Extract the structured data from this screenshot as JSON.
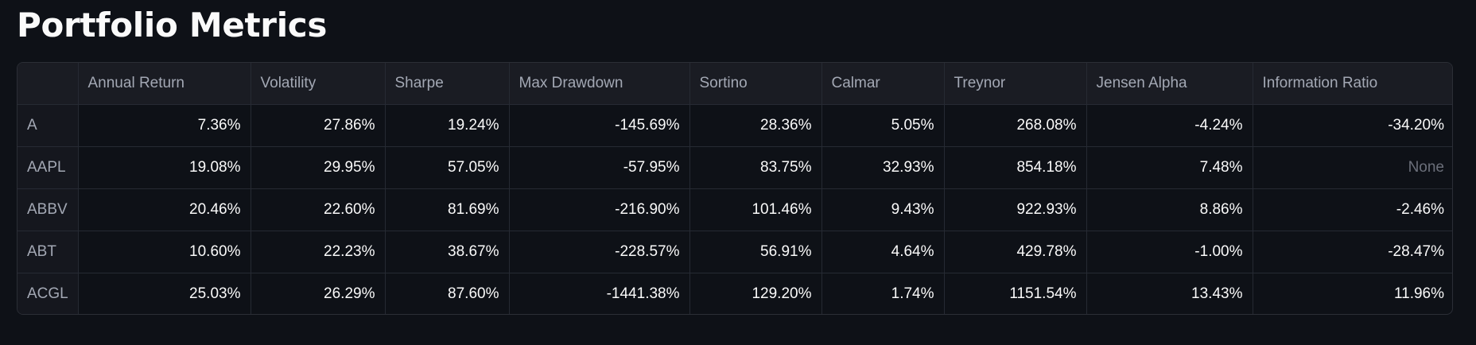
{
  "page": {
    "title": "Portfolio Metrics"
  },
  "table": {
    "columns": [
      "",
      "Annual Return",
      "Volatility",
      "Sharpe",
      "Max Drawdown",
      "Sortino",
      "Calmar",
      "Treynor",
      "Jensen Alpha",
      "Information Ratio"
    ],
    "rows": [
      [
        "A",
        "7.36%",
        "27.86%",
        "19.24%",
        "-145.69%",
        "28.36%",
        "5.05%",
        "268.08%",
        "-4.24%",
        "-34.20%"
      ],
      [
        "AAPL",
        "19.08%",
        "29.95%",
        "57.05%",
        "-57.95%",
        "83.75%",
        "32.93%",
        "854.18%",
        "7.48%",
        "None"
      ],
      [
        "ABBV",
        "20.46%",
        "22.60%",
        "81.69%",
        "-216.90%",
        "101.46%",
        "9.43%",
        "922.93%",
        "8.86%",
        "-2.46%"
      ],
      [
        "ABT",
        "10.60%",
        "22.23%",
        "38.67%",
        "-228.57%",
        "56.91%",
        "4.64%",
        "429.78%",
        "-1.00%",
        "-28.47%"
      ],
      [
        "ACGL",
        "25.03%",
        "26.29%",
        "87.60%",
        "-1441.38%",
        "129.20%",
        "1.74%",
        "1151.54%",
        "13.43%",
        "11.96%"
      ]
    ]
  },
  "colors": {
    "background": "#0e1117",
    "header_background": "#1a1c23",
    "border": "#262a33",
    "text": "#fafafa",
    "muted_text": "#a3a8b4",
    "null_text": "#6b6f7a"
  }
}
